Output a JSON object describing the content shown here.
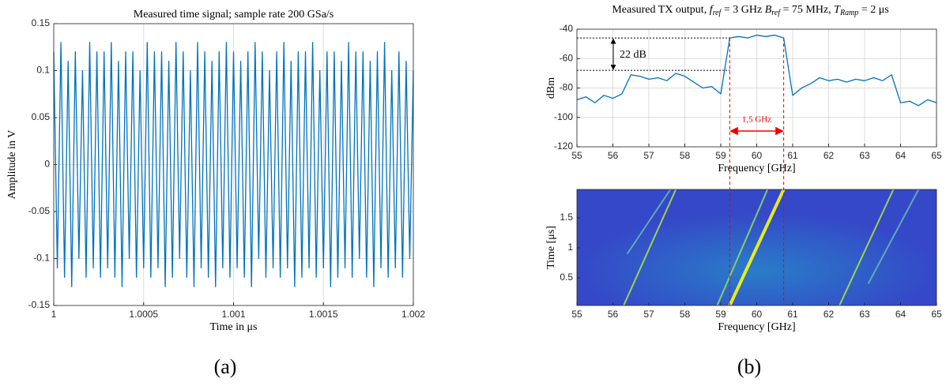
{
  "chart_data": [
    {
      "type": "line",
      "title": "Measured time signal; sample rate 200 GSa/s",
      "xlabel": "Time in μs",
      "ylabel": "Amplitude in V",
      "x": [
        1,
        1.00002,
        1.00004,
        1.00006,
        1.00008,
        1.0001,
        1.00012,
        1.00014,
        1.00016,
        1.00018,
        1.0002,
        1.00022,
        1.00024,
        1.00026,
        1.00028,
        1.0003,
        1.00032,
        1.00034,
        1.00036,
        1.00038,
        1.0004,
        1.00042,
        1.00044,
        1.00046,
        1.00048,
        1.0005,
        1.00052,
        1.00054,
        1.00056,
        1.00058,
        1.0006,
        1.00062,
        1.00064,
        1.00066,
        1.00068,
        1.0007,
        1.00072,
        1.00074,
        1.00076,
        1.00078,
        1.0008,
        1.00082,
        1.00084,
        1.00086,
        1.00088,
        1.0009,
        1.00092,
        1.00094,
        1.00096,
        1.00098,
        1.001,
        1.00102,
        1.00104,
        1.00106,
        1.00108,
        1.0011,
        1.00112,
        1.00114,
        1.00116,
        1.00118,
        1.0012,
        1.00122,
        1.00124,
        1.00126,
        1.00128,
        1.0013,
        1.00132,
        1.00134,
        1.00136,
        1.00138,
        1.0014,
        1.00142,
        1.00144,
        1.00146,
        1.00148,
        1.0015,
        1.00152,
        1.00154,
        1.00156,
        1.00158,
        1.0016,
        1.00162,
        1.00164,
        1.00166,
        1.00168,
        1.0017,
        1.00172,
        1.00174,
        1.00176,
        1.00178,
        1.0018,
        1.00182,
        1.00184,
        1.00186,
        1.00188,
        1.0019,
        1.00192,
        1.00194,
        1.00196,
        1.00198,
        1.002
      ],
      "values": [
        0.12,
        -0.11,
        0.13,
        -0.12,
        0.11,
        -0.13,
        0.12,
        -0.1,
        0.1,
        -0.12,
        0.13,
        -0.11,
        0.12,
        -0.12,
        0.12,
        -0.11,
        0.13,
        -0.12,
        0.11,
        -0.13,
        0.12,
        -0.1,
        0.12,
        -0.12,
        0.1,
        -0.11,
        0.13,
        -0.12,
        0.12,
        -0.11,
        0.12,
        -0.13,
        0.11,
        -0.12,
        0.13,
        -0.1,
        0.12,
        -0.12,
        0.1,
        -0.13,
        0.13,
        -0.11,
        0.12,
        -0.12,
        0.11,
        -0.13,
        0.12,
        -0.11,
        0.13,
        -0.12,
        0.12,
        -0.11,
        0.11,
        -0.12,
        0.12,
        -0.13,
        0.13,
        -0.1,
        0.12,
        -0.12,
        0.1,
        -0.11,
        0.12,
        -0.12,
        0.13,
        -0.11,
        0.11,
        -0.13,
        0.12,
        -0.12,
        0.12,
        -0.11,
        0.13,
        -0.12,
        0.1,
        -0.11,
        0.12,
        -0.13,
        0.12,
        -0.12,
        0.11,
        -0.11,
        0.13,
        -0.12,
        0.12,
        -0.1,
        0.12,
        -0.12,
        0.11,
        -0.13,
        0.12,
        -0.11,
        0.13,
        -0.12,
        0.1,
        -0.11,
        0.12,
        -0.12,
        0.11,
        -0.1,
        0.1
      ],
      "color": "#0072bd",
      "grid": true,
      "xlim": [
        1,
        1.002
      ],
      "xticks": [
        1,
        1.0005,
        1.001,
        1.0015,
        1.002
      ],
      "ylim": [
        -0.15,
        0.15
      ],
      "yticks": [
        -0.15,
        -0.1,
        -0.05,
        0,
        0.05,
        0.1,
        0.15
      ]
    },
    {
      "type": "line",
      "title_parts": [
        {
          "text": "Measured TX output, "
        },
        {
          "text": "f",
          "sub": "ref"
        },
        {
          "text": " = 3 GHz "
        },
        {
          "text": "B",
          "sub": "ref"
        },
        {
          "text": " = 75 MHz, "
        },
        {
          "text": "T",
          "sub": "Ramp"
        },
        {
          "text": " = 2 μs"
        }
      ],
      "xlabel": "Frequency [GHz]",
      "ylabel": "dBm",
      "x": [
        55,
        55.25,
        55.5,
        55.75,
        56,
        56.25,
        56.5,
        56.75,
        57,
        57.25,
        57.5,
        57.75,
        58,
        58.25,
        58.5,
        58.75,
        59,
        59.25,
        59.5,
        59.75,
        60,
        60.25,
        60.5,
        60.75,
        61,
        61.25,
        61.5,
        61.75,
        62,
        62.25,
        62.5,
        62.75,
        63,
        63.25,
        63.5,
        63.75,
        64,
        64.25,
        64.5,
        64.75,
        65
      ],
      "values": [
        -88,
        -86,
        -90,
        -85,
        -87,
        -84,
        -71,
        -72,
        -74,
        -73,
        -75,
        -70,
        -72,
        -76,
        -80,
        -79,
        -84,
        -46,
        -45,
        -46,
        -44,
        -45,
        -44,
        -46,
        -85,
        -80,
        -77,
        -73,
        -75,
        -74,
        -76,
        -74,
        -75,
        -73,
        -75,
        -71,
        -90,
        -89,
        -92,
        -88,
        -90
      ],
      "color": "#0072bd",
      "grid": true,
      "xlim": [
        55,
        65
      ],
      "xticks": [
        55,
        56,
        57,
        58,
        59,
        60,
        61,
        62,
        63,
        64,
        65
      ],
      "ylim": [
        -120,
        -40
      ],
      "yticks": [
        -120,
        -100,
        -80,
        -60,
        -40
      ],
      "hlines": [
        -46,
        -68
      ],
      "vlines": [
        59.25,
        60.75
      ],
      "annotations": [
        "22 dB",
        "1,5 GHz"
      ]
    },
    {
      "type": "spectrogram",
      "xlabel": "Frequency [GHz]",
      "ylabel": "Time [μs]",
      "background": "#3548c8",
      "grid": false,
      "traces": [
        {
          "x": [
            59.25,
            60.75
          ],
          "y": [
            0.04,
            1.97
          ],
          "color": "#f9fb0e"
        },
        {
          "x": [
            58.9,
            60.3
          ],
          "y": [
            0.04,
            1.97
          ],
          "color": "#8fd860"
        },
        {
          "x": [
            56.3,
            57.75
          ],
          "y": [
            0.04,
            1.97
          ],
          "color": "#a8e040"
        },
        {
          "x": [
            62.3,
            63.8
          ],
          "y": [
            0.04,
            1.97
          ],
          "color": "#a8e040"
        },
        {
          "x": [
            63.1,
            64.5
          ],
          "y": [
            0.4,
            1.97
          ],
          "color": "#5fb8b0"
        },
        {
          "x": [
            56.4,
            57.6
          ],
          "y": [
            0.9,
            1.97
          ],
          "color": "#5fb8b0"
        }
      ],
      "xlim": [
        55,
        65
      ],
      "xticks": [
        55,
        56,
        57,
        58,
        59,
        60,
        61,
        62,
        63,
        64,
        65
      ],
      "ylim": [
        0.04,
        1.97
      ],
      "yticks": [
        0.5,
        1,
        1.5
      ]
    }
  ],
  "panel_labels": [
    "(a)",
    "(b)"
  ]
}
